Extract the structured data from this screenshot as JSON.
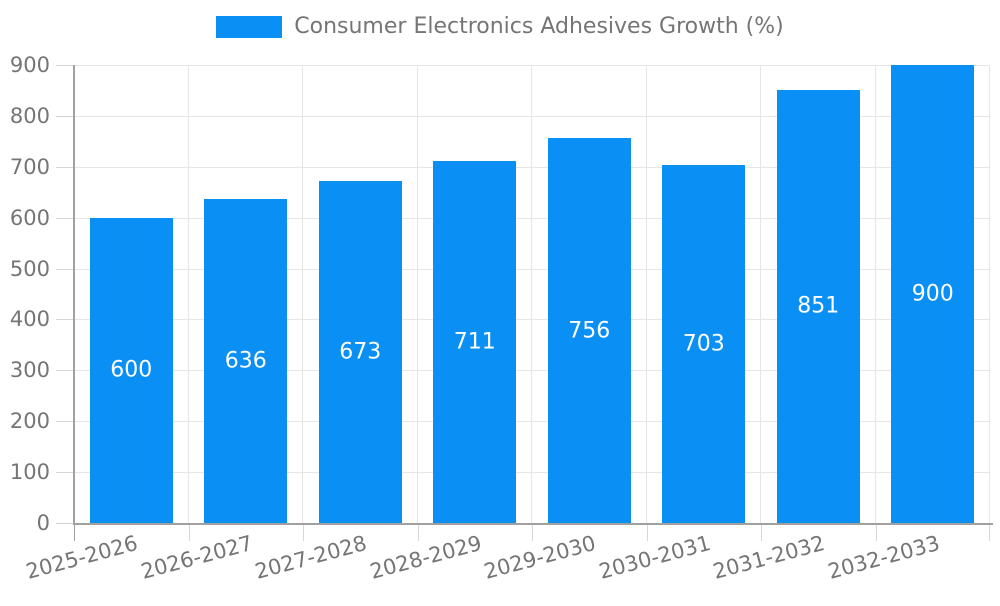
{
  "legend": {
    "label": "Consumer Electronics Adhesives Growth (%)"
  },
  "chart_data": {
    "type": "bar",
    "title": "Consumer Electronics Adhesives Growth (%)",
    "categories": [
      "2025-2026",
      "2026-2027",
      "2027-2028",
      "2028-2029",
      "2029-2030",
      "2030-2031",
      "2031-2032",
      "2032-2033"
    ],
    "values": [
      600,
      636,
      673,
      711,
      756,
      703,
      851,
      900
    ],
    "xlabel": "",
    "ylabel": "",
    "ylim": [
      0,
      900
    ],
    "ytick_interval": 100,
    "ytick_labels": [
      "0",
      "100",
      "200",
      "300",
      "400",
      "500",
      "600",
      "700",
      "800",
      "900"
    ],
    "grid": true,
    "legend_position": "top-center",
    "bar_labels_inside": true,
    "colors": {
      "bar": "#0a8ff5",
      "bar_label": "#ffffff",
      "axis": "#a0a0a0",
      "grid": "#e6e6e6",
      "tick": "#d6d6d6",
      "text": "#757575"
    }
  }
}
